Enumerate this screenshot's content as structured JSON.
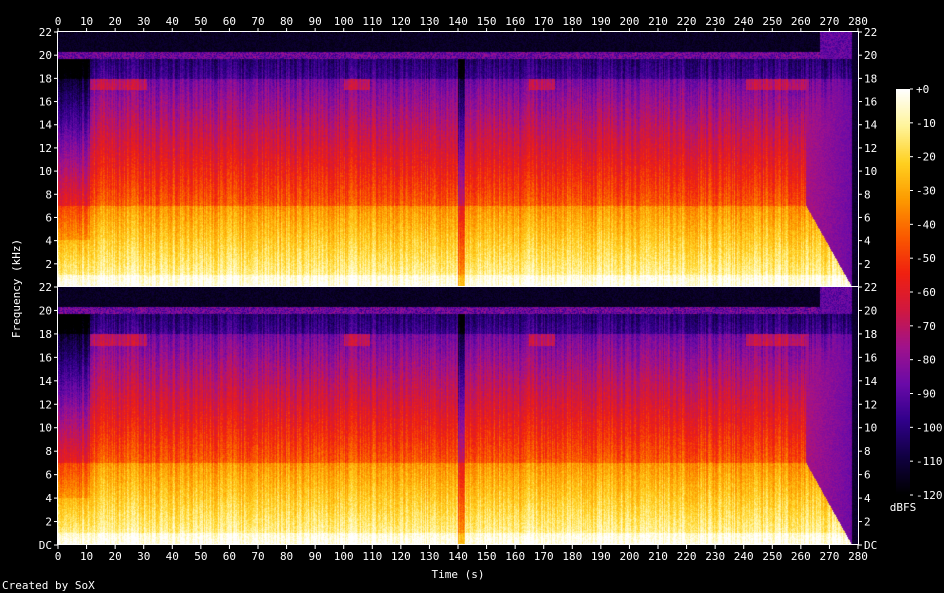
{
  "chart_data": {
    "type": "heatmap",
    "title": "",
    "xlabel": "Time (s)",
    "ylabel": "Frequency (kHz)",
    "credit": "Created by SoX",
    "xlim": [
      0,
      280
    ],
    "ylim": [
      0,
      22
    ],
    "x_ticks": [
      "0",
      "10",
      "20",
      "30",
      "40",
      "50",
      "60",
      "70",
      "80",
      "90",
      "100",
      "110",
      "120",
      "130",
      "140",
      "150",
      "160",
      "170",
      "180",
      "190",
      "200",
      "210",
      "220",
      "230",
      "240",
      "250",
      "260",
      "270",
      "280"
    ],
    "y_ticks": [
      "DC",
      "2",
      "4",
      "6",
      "8",
      "10",
      "12",
      "14",
      "16",
      "18",
      "20",
      "22"
    ],
    "channels": [
      {
        "name": "left"
      },
      {
        "name": "right"
      }
    ],
    "colorbar": {
      "label": "dBFS",
      "ticks": [
        "+0",
        "-10",
        "-20",
        "-30",
        "-40",
        "-50",
        "-60",
        "-70",
        "-80",
        "-90",
        "-100",
        "-110",
        "-120"
      ],
      "range": [
        -120,
        0
      ],
      "colors": [
        "#000000",
        "#100040",
        "#30008a",
        "#6a0aa8",
        "#a0128c",
        "#d01840",
        "#f02010",
        "#fa5a00",
        "#fd9a00",
        "#ffd020",
        "#fff49a",
        "#ffffff"
      ]
    },
    "spectral_profile": {
      "note": "",
      "active_time_range": [
        0,
        265
      ],
      "fade_out_range": [
        262,
        278
      ],
      "high_band_bursts": [
        [
          11,
          31
        ],
        [
          100,
          109
        ],
        [
          165,
          174
        ],
        [
          241,
          263
        ]
      ]
    }
  }
}
